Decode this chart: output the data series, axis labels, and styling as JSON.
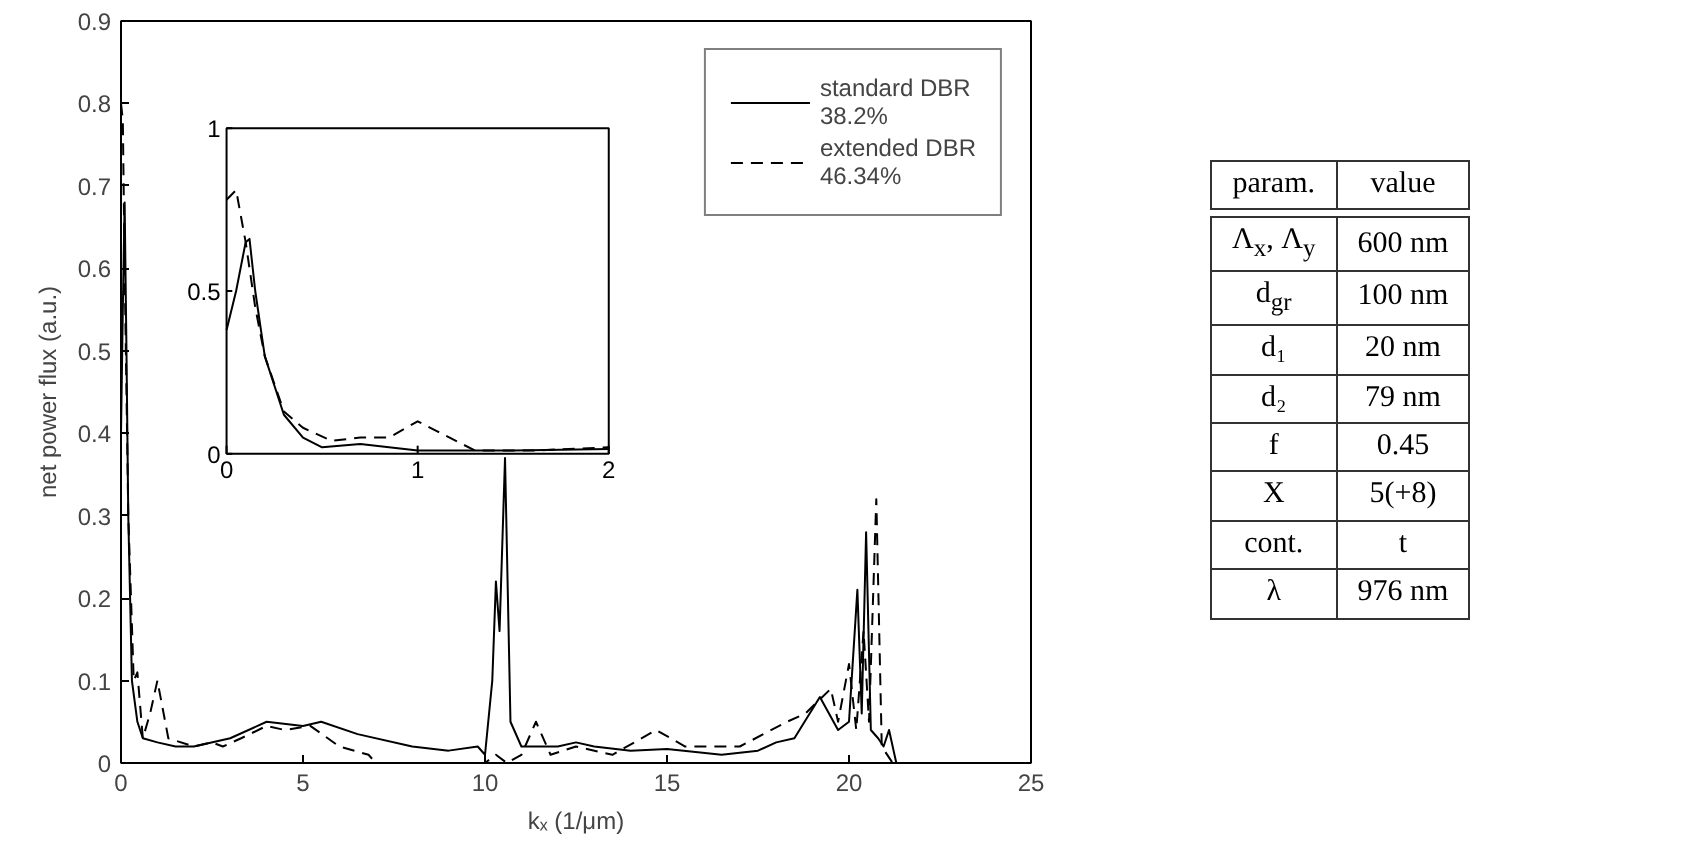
{
  "chart_data": [
    {
      "type": "line",
      "xlabel": "kₓ (1/μm)",
      "ylabel": "net power flux (a.u.)",
      "xlim": [
        0,
        25
      ],
      "ylim": [
        0,
        0.9
      ],
      "xticks": [
        0,
        5,
        10,
        15,
        20,
        25
      ],
      "yticks": [
        0,
        0.1,
        0.2,
        0.3,
        0.4,
        0.5,
        0.6,
        0.7,
        0.8,
        0.9
      ],
      "grid": false,
      "legend": "top right",
      "marker": "none",
      "series": [
        {
          "name": "standard DBR 38.2%",
          "color": "#000000",
          "line_style": "solid",
          "x": [
            0,
            0.05,
            0.1,
            0.15,
            0.2,
            0.3,
            0.45,
            0.6,
            1.0,
            1.5,
            2,
            3,
            4,
            5,
            5.5,
            6.5,
            8,
            9,
            9.8,
            10,
            10.2,
            10.3,
            10.4,
            10.55,
            10.7,
            11,
            12,
            12.5,
            13,
            14,
            15,
            16.5,
            17.5,
            18,
            18.5,
            19.2,
            19.7,
            20,
            20.23,
            20.35,
            20.47,
            20.6,
            20.8,
            20.95,
            21.1,
            21.3,
            25
          ],
          "values": [
            0.4,
            0.55,
            0.68,
            0.5,
            0.3,
            0.1,
            0.05,
            0.03,
            0.025,
            0.02,
            0.02,
            0.03,
            0.05,
            0.045,
            0.05,
            0.035,
            0.02,
            0.015,
            0.02,
            0.01,
            0.1,
            0.22,
            0.16,
            0.37,
            0.05,
            0.02,
            0.02,
            0.025,
            0.02,
            0.015,
            0.017,
            0.01,
            0.015,
            0.025,
            0.03,
            0.08,
            0.04,
            0.05,
            0.21,
            0.06,
            0.28,
            0.04,
            0.03,
            0.02,
            0.04,
            0,
            0
          ]
        },
        {
          "name": "extended DBR 46.34%",
          "color": "#000000",
          "line_style": "dashed",
          "x": [
            0,
            0.05,
            0.1,
            0.2,
            0.35,
            0.45,
            0.6,
            0.8,
            1.0,
            1.3,
            2,
            2.5,
            2.8,
            3.3,
            4,
            4.5,
            5.2,
            6,
            6.8,
            7,
            10,
            10.3,
            10.6,
            11,
            11.4,
            11.8,
            12.5,
            13.5,
            14.7,
            15.5,
            16.5,
            17,
            18.3,
            18.8,
            19.5,
            19.7,
            20.0,
            20.2,
            20.4,
            20.55,
            20.75,
            20.9,
            21.2,
            25
          ],
          "values": [
            0.8,
            0.78,
            0.6,
            0.3,
            0.1,
            0.11,
            0.03,
            0.06,
            0.1,
            0.03,
            0.02,
            0.025,
            0.02,
            0.03,
            0.045,
            0.04,
            0.045,
            0.02,
            0.01,
            0,
            0,
            0.01,
            0,
            0.01,
            0.05,
            0.01,
            0.02,
            0.01,
            0.04,
            0.02,
            0.02,
            0.02,
            0.05,
            0.06,
            0.09,
            0.05,
            0.12,
            0.04,
            0.16,
            0.05,
            0.32,
            0.02,
            0,
            0
          ]
        }
      ]
    },
    {
      "type": "line",
      "xlim": [
        0,
        2
      ],
      "ylim": [
        0,
        1
      ],
      "xticks": [
        0,
        1,
        2
      ],
      "yticks": [
        0,
        0.5,
        1
      ],
      "marker": "none",
      "series": [
        {
          "color": "#000000",
          "line_style": "solid",
          "x": [
            0,
            0.05,
            0.1,
            0.12,
            0.15,
            0.2,
            0.3,
            0.4,
            0.5,
            0.7,
            1.0,
            1.5,
            2
          ],
          "values": [
            0.38,
            0.5,
            0.65,
            0.66,
            0.5,
            0.3,
            0.12,
            0.05,
            0.02,
            0.03,
            0.01,
            0.01,
            0.015
          ]
        },
        {
          "color": "#000000",
          "line_style": "dashed",
          "x": [
            0,
            0.05,
            0.1,
            0.15,
            0.2,
            0.3,
            0.4,
            0.55,
            0.7,
            0.85,
            1.0,
            1.1,
            1.3,
            1.6,
            2
          ],
          "values": [
            0.78,
            0.81,
            0.65,
            0.45,
            0.3,
            0.13,
            0.08,
            0.04,
            0.05,
            0.05,
            0.1,
            0.07,
            0.01,
            0.01,
            0.02
          ]
        }
      ]
    },
    {
      "type": "other",
      "annotations": [
        "param.",
        "value",
        "Λ$_{x}$, Λ$_{y}$",
        "600 nm",
        "d$_{gr}$",
        "100 nm",
        "d₁",
        "20 nm",
        "d₂",
        "79 nm",
        "f",
        "0.45",
        "X",
        "5(+8)",
        "cont.",
        "t",
        "λ",
        "976 nm"
      ]
    }
  ]
}
